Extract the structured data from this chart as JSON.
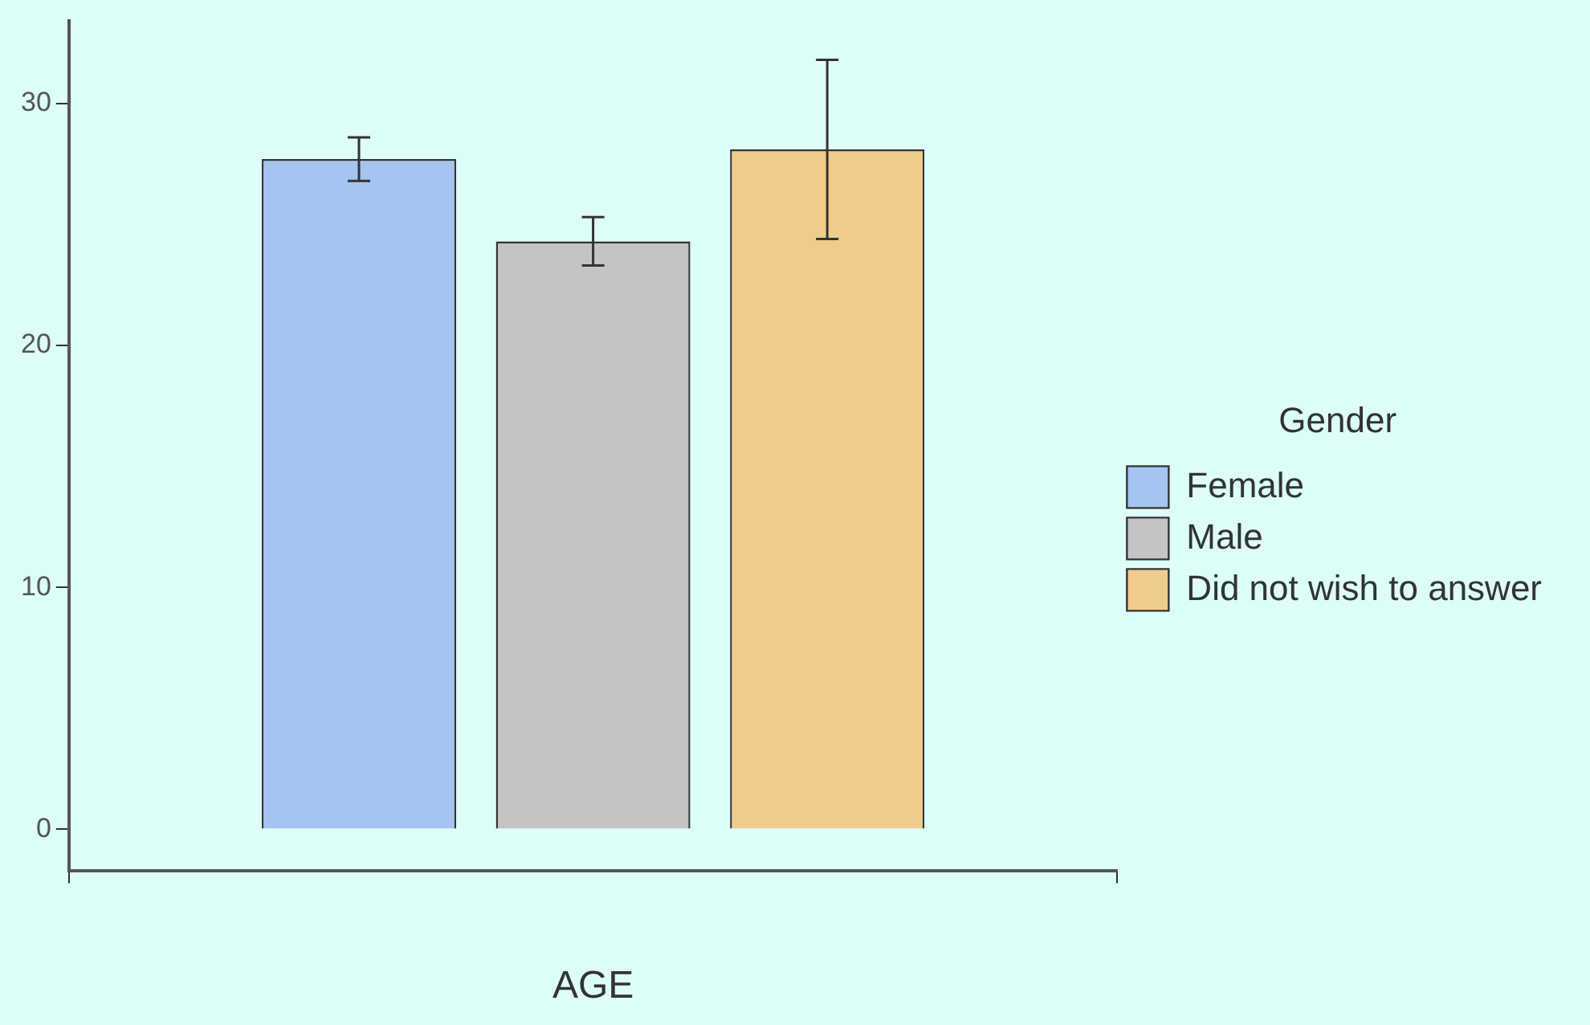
{
  "chart_data": {
    "type": "bar",
    "xlabel": "AGE",
    "categories": [
      null
    ],
    "legend_title": "Gender",
    "legend": "right",
    "grid": false,
    "ylim": [
      -1.7,
      33.4
    ],
    "yticks": [
      0,
      10,
      20,
      30
    ],
    "series": [
      {
        "name": "Female",
        "color": "#a6c4f0",
        "values": [
          27.7
        ],
        "errors": [
          [
            26.8,
            28.6
          ]
        ]
      },
      {
        "name": "Male",
        "color": "#c4c4c4",
        "values": [
          24.3
        ],
        "errors": [
          [
            23.3,
            25.3
          ]
        ]
      },
      {
        "name": "Did not wish to answer",
        "color": "#f0cc8c",
        "values": [
          28.1
        ],
        "errors": [
          [
            24.4,
            31.8
          ]
        ]
      }
    ]
  }
}
